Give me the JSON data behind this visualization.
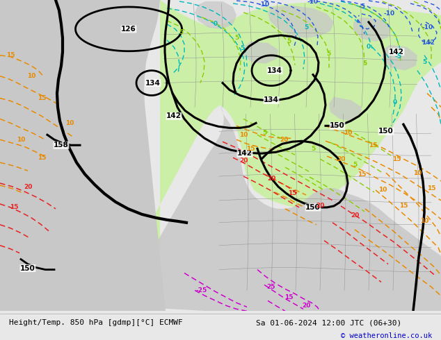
{
  "title_left": "Height/Temp. 850 hPa [gdmp][°C] ECMWF",
  "title_right": "Sa 01-06-2024 12:00 JTC (06+30)",
  "copyright": "© weatheronline.co.uk",
  "bg_color": "#e8e8e8",
  "ocean_color": "#e0e8f0",
  "land_color": "#c8c8c8",
  "green_color": "#c8f0a0",
  "fig_width": 6.34,
  "fig_height": 4.9,
  "dpi": 100,
  "copyright_color": "#0000cc"
}
